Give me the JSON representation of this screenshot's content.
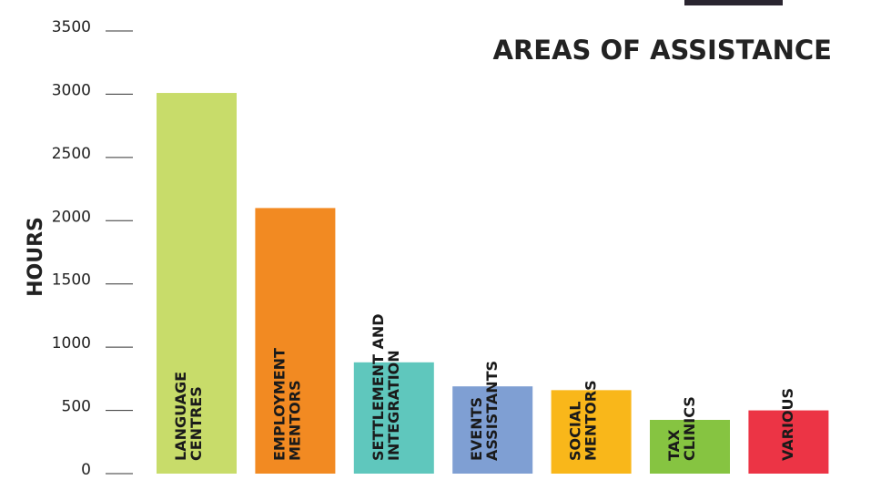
{
  "chart_data": {
    "type": "bar",
    "title": "AREAS OF ASSISTANCE",
    "y_label": "HOURS",
    "categories": [
      [
        "LANGUAGE",
        "CENTRES"
      ],
      [
        "EMPLOYMENT",
        "MENTORS"
      ],
      [
        "SETTLEMENT AND",
        "INTEGRATION"
      ],
      [
        "EVENTS",
        "ASSISTANTS"
      ],
      [
        "SOCIAL",
        "MENTORS"
      ],
      [
        "TAX",
        "CLINICS"
      ],
      [
        "VARIOUS"
      ]
    ],
    "values": [
      3010,
      2100,
      880,
      690,
      660,
      425,
      500
    ],
    "colors": [
      "#c8dc6a",
      "#f28a22",
      "#5fc7bd",
      "#7f9fd3",
      "#f9b71a",
      "#86c441",
      "#ec3445"
    ],
    "ylim": [
      0,
      3500
    ],
    "yticks": [
      0,
      500,
      1000,
      1500,
      2000,
      2500,
      3000,
      3500
    ]
  }
}
